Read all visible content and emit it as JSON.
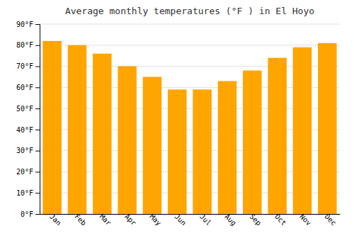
{
  "chart_data": {
    "type": "bar",
    "title": "Average monthly temperatures (°F ) in El Hoyo",
    "categories": [
      "Jan",
      "Feb",
      "Mar",
      "Apr",
      "May",
      "Jun",
      "Jul",
      "Aug",
      "Sep",
      "Oct",
      "Nov",
      "Dec"
    ],
    "values": [
      82,
      80,
      76,
      70,
      65,
      59,
      59,
      63,
      68,
      74,
      79,
      81
    ],
    "color": "#FFA500",
    "ylim": [
      0,
      90
    ],
    "yticks": [
      {
        "value": 0,
        "label": "0°F"
      },
      {
        "value": 10,
        "label": "10°F"
      },
      {
        "value": 20,
        "label": "20°F"
      },
      {
        "value": 30,
        "label": "30°F"
      },
      {
        "value": 40,
        "label": "40°F"
      },
      {
        "value": 50,
        "label": "50°F"
      },
      {
        "value": 60,
        "label": "60°F"
      },
      {
        "value": 70,
        "label": "70°F"
      },
      {
        "value": 80,
        "label": "80°F"
      },
      {
        "value": 90,
        "label": "90°F"
      }
    ],
    "grid": true
  }
}
